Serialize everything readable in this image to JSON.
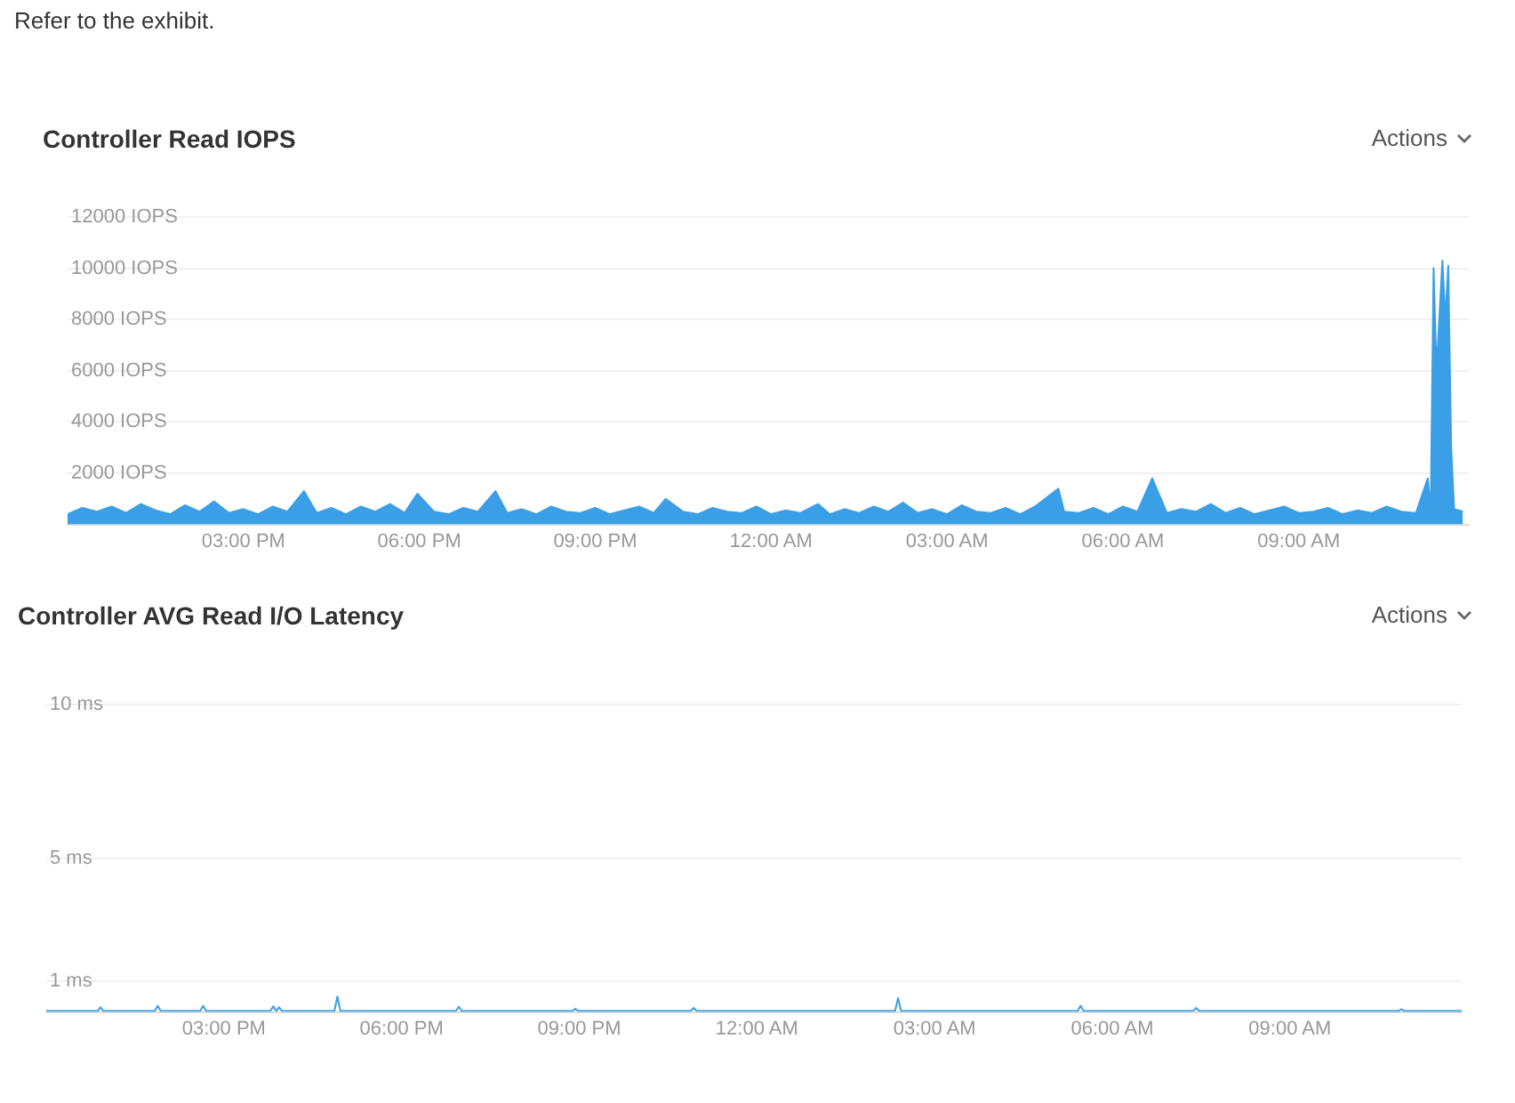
{
  "chart_data": [
    {
      "type": "area",
      "title": "Controller Read IOPS",
      "annotations": [
        "Refer to the exhibit.",
        "Actions"
      ],
      "color": "#3a9fe6",
      "grid": "y",
      "xlim": [
        "--01-01T12:00",
        "--01-02T11:54"
      ],
      "xticks": [
        {
          "value": "--01-01T15:00",
          "label": "03:00 PM"
        },
        {
          "value": "--01-01T18:00",
          "label": "06:00 PM"
        },
        {
          "value": "--01-01T21:00",
          "label": "09:00 PM"
        },
        {
          "value": "--01-02T00:00",
          "label": "12:00 AM"
        },
        {
          "value": "--01-02T03:00",
          "label": "03:00 AM"
        },
        {
          "value": "--01-02T06:00",
          "label": "06:00 AM"
        },
        {
          "value": "--01-02T09:00",
          "label": "09:00 AM"
        }
      ],
      "ylim": [
        0,
        12000
      ],
      "yticks": [
        {
          "value": 2000,
          "label": "2000 IOPS"
        },
        {
          "value": 4000,
          "label": "4000 IOPS"
        },
        {
          "value": 6000,
          "label": "6000 IOPS"
        },
        {
          "value": 8000,
          "label": "8000 IOPS"
        },
        {
          "value": 10000,
          "label": "10000 IOPS"
        },
        {
          "value": 12000,
          "label": "12000 IOPS"
        }
      ],
      "x": [
        "--01-01T12:00",
        "--01-01T12:15",
        "--01-01T12:30",
        "--01-01T12:45",
        "--01-01T13:00",
        "--01-01T13:15",
        "--01-01T13:30",
        "--01-01T13:45",
        "--01-01T14:00",
        "--01-01T14:15",
        "--01-01T14:30",
        "--01-01T14:45",
        "--01-01T15:00",
        "--01-01T15:15",
        "--01-01T15:30",
        "--01-01T15:45",
        "--01-01T16:02",
        "--01-01T16:15",
        "--01-01T16:30",
        "--01-01T16:45",
        "--01-01T17:00",
        "--01-01T17:15",
        "--01-01T17:30",
        "--01-01T17:45",
        "--01-01T17:58",
        "--01-01T18:15",
        "--01-01T18:30",
        "--01-01T18:45",
        "--01-01T19:00",
        "--01-01T19:18",
        "--01-01T19:30",
        "--01-01T19:45",
        "--01-01T20:00",
        "--01-01T20:15",
        "--01-01T20:30",
        "--01-01T20:45",
        "--01-01T21:00",
        "--01-01T21:15",
        "--01-01T21:30",
        "--01-01T21:45",
        "--01-01T22:00",
        "--01-01T22:12",
        "--01-01T22:30",
        "--01-01T22:45",
        "--01-01T23:00",
        "--01-01T23:15",
        "--01-01T23:30",
        "--01-01T23:45",
        "--01-02T00:00",
        "--01-02T00:15",
        "--01-02T00:30",
        "--01-02T00:48",
        "--01-02T01:00",
        "--01-02T01:15",
        "--01-02T01:30",
        "--01-02T01:45",
        "--01-02T02:00",
        "--01-02T02:15",
        "--01-02T02:30",
        "--01-02T02:45",
        "--01-02T03:00",
        "--01-02T03:15",
        "--01-02T03:30",
        "--01-02T03:45",
        "--01-02T04:00",
        "--01-02T04:15",
        "--01-02T04:30",
        "--01-02T04:54",
        "--01-02T05:00",
        "--01-02T05:15",
        "--01-02T05:30",
        "--01-02T05:45",
        "--01-02T06:00",
        "--01-02T06:15",
        "--01-02T06:30",
        "--01-02T06:45",
        "--01-02T07:00",
        "--01-02T07:15",
        "--01-02T07:30",
        "--01-02T07:45",
        "--01-02T08:00",
        "--01-02T08:15",
        "--01-02T08:30",
        "--01-02T08:45",
        "--01-02T09:00",
        "--01-02T09:15",
        "--01-02T09:30",
        "--01-02T09:45",
        "--01-02T10:00",
        "--01-02T10:15",
        "--01-02T10:30",
        "--01-02T10:45",
        "--01-02T11:00",
        "--01-02T11:12",
        "--01-02T11:15",
        "--01-02T11:18",
        "--01-02T11:21",
        "--01-02T11:27",
        "--01-02T11:30",
        "--01-02T11:33",
        "--01-02T11:36",
        "--01-02T11:39",
        "--01-02T11:48"
      ],
      "values": [
        400,
        650,
        500,
        700,
        450,
        800,
        550,
        400,
        750,
        500,
        900,
        450,
        600,
        400,
        700,
        500,
        1300,
        450,
        650,
        400,
        700,
        500,
        800,
        450,
        1200,
        500,
        400,
        650,
        500,
        1300,
        450,
        600,
        400,
        700,
        500,
        450,
        650,
        400,
        550,
        700,
        450,
        1000,
        500,
        400,
        650,
        500,
        450,
        700,
        400,
        550,
        450,
        800,
        400,
        600,
        450,
        700,
        500,
        850,
        450,
        600,
        400,
        750,
        500,
        450,
        650,
        400,
        700,
        1400,
        500,
        450,
        650,
        400,
        700,
        500,
        1800,
        450,
        600,
        500,
        800,
        450,
        650,
        400,
        550,
        700,
        450,
        500,
        650,
        400,
        550,
        450,
        700,
        500,
        450,
        1800,
        500,
        10000,
        6000,
        10300,
        8000,
        10100,
        3000,
        600,
        500
      ]
    },
    {
      "type": "line",
      "title": "Controller AVG Read I/O Latency",
      "annotations": [
        "Actions"
      ],
      "color": "#3a9fe6",
      "grid": "y",
      "xlim": [
        "--01-01T12:00",
        "--01-02T11:54"
      ],
      "xticks": [
        {
          "value": "--01-01T15:00",
          "label": "03:00 PM"
        },
        {
          "value": "--01-01T18:00",
          "label": "06:00 PM"
        },
        {
          "value": "--01-01T21:00",
          "label": "09:00 PM"
        },
        {
          "value": "--01-02T00:00",
          "label": "12:00 AM"
        },
        {
          "value": "--01-02T03:00",
          "label": "03:00 AM"
        },
        {
          "value": "--01-02T06:00",
          "label": "06:00 AM"
        },
        {
          "value": "--01-02T09:00",
          "label": "09:00 AM"
        }
      ],
      "ylim": [
        0,
        10
      ],
      "yticks": [
        {
          "value": 1,
          "label": "1 ms"
        },
        {
          "value": 5,
          "label": "5 ms"
        },
        {
          "value": 10,
          "label": "10 ms"
        }
      ],
      "x": [
        "--01-01T12:00",
        "--01-01T12:52",
        "--01-01T12:55",
        "--01-01T12:58",
        "--01-01T13:50",
        "--01-01T13:53",
        "--01-01T13:56",
        "--01-01T14:36",
        "--01-01T14:39",
        "--01-01T14:42",
        "--01-01T15:47",
        "--01-01T15:50",
        "--01-01T15:53",
        "--01-01T15:56",
        "--01-01T15:59",
        "--01-01T16:52",
        "--01-01T16:55",
        "--01-01T16:58",
        "--01-01T18:55",
        "--01-01T18:58",
        "--01-01T19:01",
        "--01-01T20:53",
        "--01-01T20:56",
        "--01-01T20:59",
        "--01-01T22:53",
        "--01-01T22:56",
        "--01-01T22:59",
        "--01-02T02:20",
        "--01-02T02:23",
        "--01-02T02:26",
        "--01-02T05:25",
        "--01-02T05:28",
        "--01-02T05:31",
        "--01-02T07:22",
        "--01-02T07:25",
        "--01-02T07:28",
        "--01-02T10:50",
        "--01-02T10:53",
        "--01-02T10:56",
        "--01-02T11:54"
      ],
      "values": [
        0.03,
        0.03,
        0.15,
        0.03,
        0.03,
        0.2,
        0.03,
        0.03,
        0.2,
        0.03,
        0.03,
        0.18,
        0.03,
        0.15,
        0.03,
        0.03,
        0.5,
        0.03,
        0.03,
        0.17,
        0.03,
        0.03,
        0.1,
        0.03,
        0.03,
        0.13,
        0.03,
        0.03,
        0.45,
        0.03,
        0.03,
        0.2,
        0.03,
        0.03,
        0.13,
        0.03,
        0.03,
        0.09,
        0.03,
        0.03
      ]
    }
  ]
}
